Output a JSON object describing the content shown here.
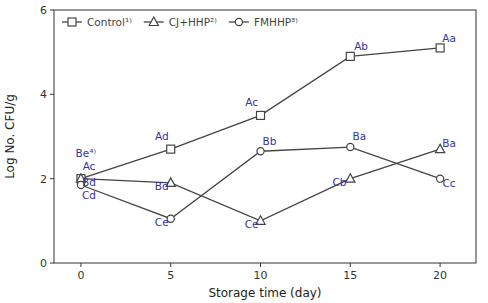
{
  "chart_data": {
    "type": "line",
    "xlabel": "Storage time (day)",
    "ylabel": "Log No. CFU/g",
    "x": [
      0,
      5,
      10,
      15,
      20
    ],
    "xlim": [
      -1.5,
      22
    ],
    "xticks": [
      0,
      5,
      10,
      15,
      20
    ],
    "ylim": [
      0,
      6
    ],
    "yticks": [
      0,
      2,
      4,
      6
    ],
    "grid": false,
    "legend": "upper left",
    "series": [
      {
        "name": "Control¹⁾",
        "color": "#444444",
        "marker": "square",
        "values": [
          2.0,
          2.7,
          3.5,
          4.9,
          5.1
        ]
      },
      {
        "name": "CJ+HHP²⁾",
        "color": "#444444",
        "marker": "triangle",
        "values": [
          2.0,
          1.9,
          1.0,
          2.0,
          2.7
        ]
      },
      {
        "name": "FMHHP³⁾",
        "color": "#444444",
        "marker": "circle",
        "values": [
          1.85,
          1.05,
          2.65,
          2.75,
          2.0
        ]
      }
    ],
    "annotations": [
      {
        "text": "Ac",
        "x": 0.45,
        "y": 2.15,
        "color": "#3333aa"
      },
      {
        "text": "Ad",
        "x": 4.5,
        "y": 2.88,
        "color": "#3333aa"
      },
      {
        "text": "Ac",
        "x": 9.5,
        "y": 3.68,
        "color": "#3333aa"
      },
      {
        "text": "Ab",
        "x": 15.6,
        "y": 5.0,
        "color": "#3333aa"
      },
      {
        "text": "Aa",
        "x": 20.5,
        "y": 5.2,
        "color": "#3333aa"
      },
      {
        "text": "Bd",
        "x": 0.45,
        "y": 1.78,
        "color": "#3333aa"
      },
      {
        "text": "Bd",
        "x": 4.5,
        "y": 1.68,
        "color": "#3333aa"
      },
      {
        "text": "Ce",
        "x": 9.5,
        "y": 0.78,
        "color": "#3333aa"
      },
      {
        "text": "Cb",
        "x": 14.4,
        "y": 1.78,
        "color": "#3333aa"
      },
      {
        "text": "Ba",
        "x": 20.5,
        "y": 2.7,
        "color": "#3333aa"
      },
      {
        "text": "Cd",
        "x": 0.45,
        "y": 1.47,
        "color": "#3333aa"
      },
      {
        "text": "Ce",
        "x": 4.5,
        "y": 0.83,
        "color": "#3333aa"
      },
      {
        "text": "Bb",
        "x": 10.5,
        "y": 2.75,
        "color": "#3333aa"
      },
      {
        "text": "Ba",
        "x": 15.5,
        "y": 2.87,
        "color": "#3333aa"
      },
      {
        "text": "Cc",
        "x": 20.5,
        "y": 1.75,
        "color": "#3333aa"
      },
      {
        "text": "Be⁴⁾",
        "x": -0.3,
        "y": 2.28,
        "color": "#3333aa",
        "align": "left"
      }
    ]
  }
}
